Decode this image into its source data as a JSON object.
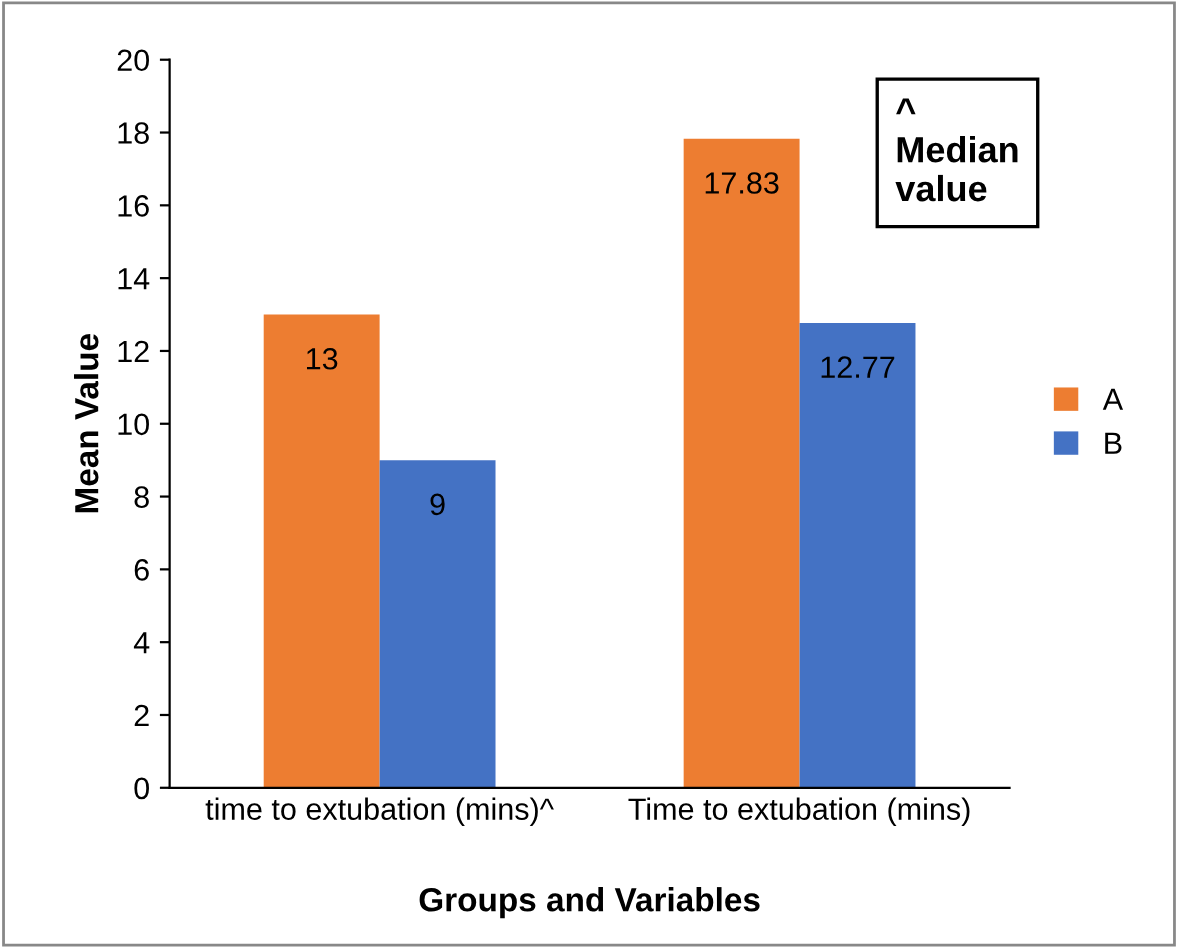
{
  "chart_data": {
    "type": "bar",
    "xlabel": "Groups and Variables",
    "ylabel": "Mean Value",
    "categories": [
      "time to extubation (mins)^",
      "Time to extubation (mins)"
    ],
    "series": [
      {
        "name": "A",
        "color": "#ed7d31",
        "values": [
          13,
          17.83
        ]
      },
      {
        "name": "B",
        "color": "#4472c4",
        "values": [
          9,
          12.77
        ]
      }
    ],
    "ylim": [
      0,
      20
    ],
    "yticks": [
      0,
      2,
      4,
      6,
      8,
      10,
      12,
      14,
      16,
      18,
      20
    ],
    "data_labels": true,
    "grid": false,
    "legend": "right",
    "annotations": [
      "^\nMedian\nvalue"
    ]
  }
}
